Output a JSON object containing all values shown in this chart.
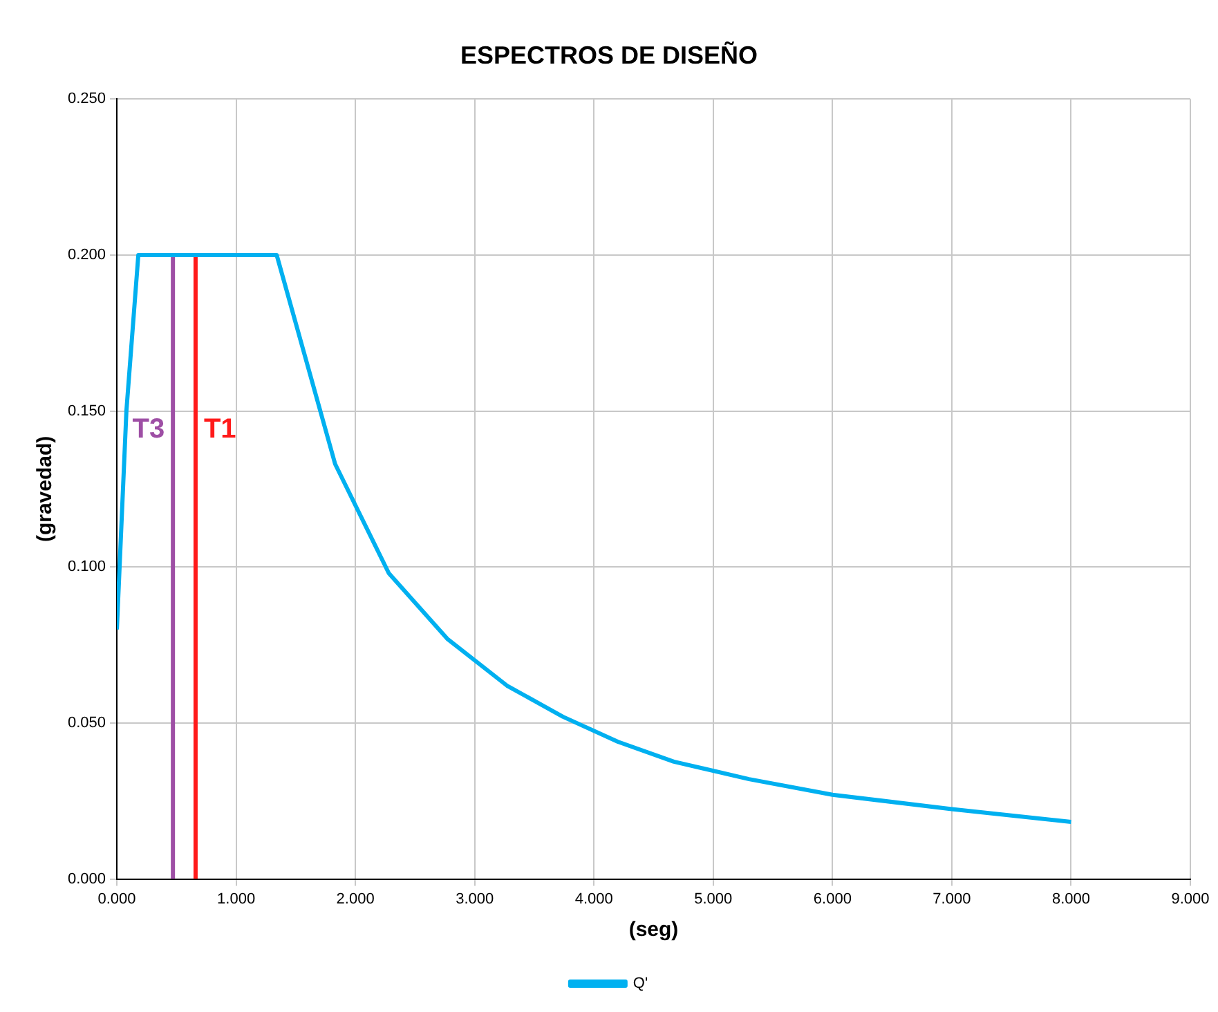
{
  "chart_data": {
    "type": "line",
    "title": "ESPECTROS DE DISEÑO",
    "xlabel": "(seg)",
    "ylabel": "(gravedad)",
    "xlim": [
      0,
      9
    ],
    "ylim": [
      0,
      0.25
    ],
    "xticks": [
      {
        "value": 0,
        "label": "0.000"
      },
      {
        "value": 1,
        "label": "1.000"
      },
      {
        "value": 2,
        "label": "2.000"
      },
      {
        "value": 3,
        "label": "3.000"
      },
      {
        "value": 4,
        "label": "4.000"
      },
      {
        "value": 5,
        "label": "5.000"
      },
      {
        "value": 6,
        "label": "6.000"
      },
      {
        "value": 7,
        "label": "7.000"
      },
      {
        "value": 8,
        "label": "8.000"
      },
      {
        "value": 9,
        "label": "9.000"
      }
    ],
    "yticks": [
      {
        "value": 0,
        "label": "0.000"
      },
      {
        "value": 0.05,
        "label": "0.050"
      },
      {
        "value": 0.1,
        "label": "0.100"
      },
      {
        "value": 0.15,
        "label": "0.150"
      },
      {
        "value": 0.2,
        "label": "0.200"
      },
      {
        "value": 0.25,
        "label": "0.250"
      }
    ],
    "grid": true,
    "legend": "bottom",
    "marker": "none",
    "line_style": "solid",
    "series": [
      {
        "name": "Q'",
        "color": "#00b0f0",
        "x": [
          0,
          0.08,
          0.18,
          1.34,
          1.83,
          2.28,
          2.77,
          3.27,
          3.74,
          4.2,
          4.67,
          5.3,
          6.0,
          7.0,
          8.0
        ],
        "values": [
          0.08,
          0.15,
          0.2,
          0.2,
          0.133,
          0.098,
          0.077,
          0.062,
          0.052,
          0.044,
          0.0376,
          0.032,
          0.027,
          0.0224,
          0.0183
        ]
      },
      {
        "name": "T3",
        "type": "line",
        "color": "#9e4fa5",
        "x": [
          0.47,
          0.47
        ],
        "values": [
          0,
          0.2
        ]
      },
      {
        "name": "T1",
        "type": "line",
        "color": "#ff1a1a",
        "x": [
          0.66,
          0.66
        ],
        "values": [
          0,
          0.2
        ]
      }
    ]
  }
}
